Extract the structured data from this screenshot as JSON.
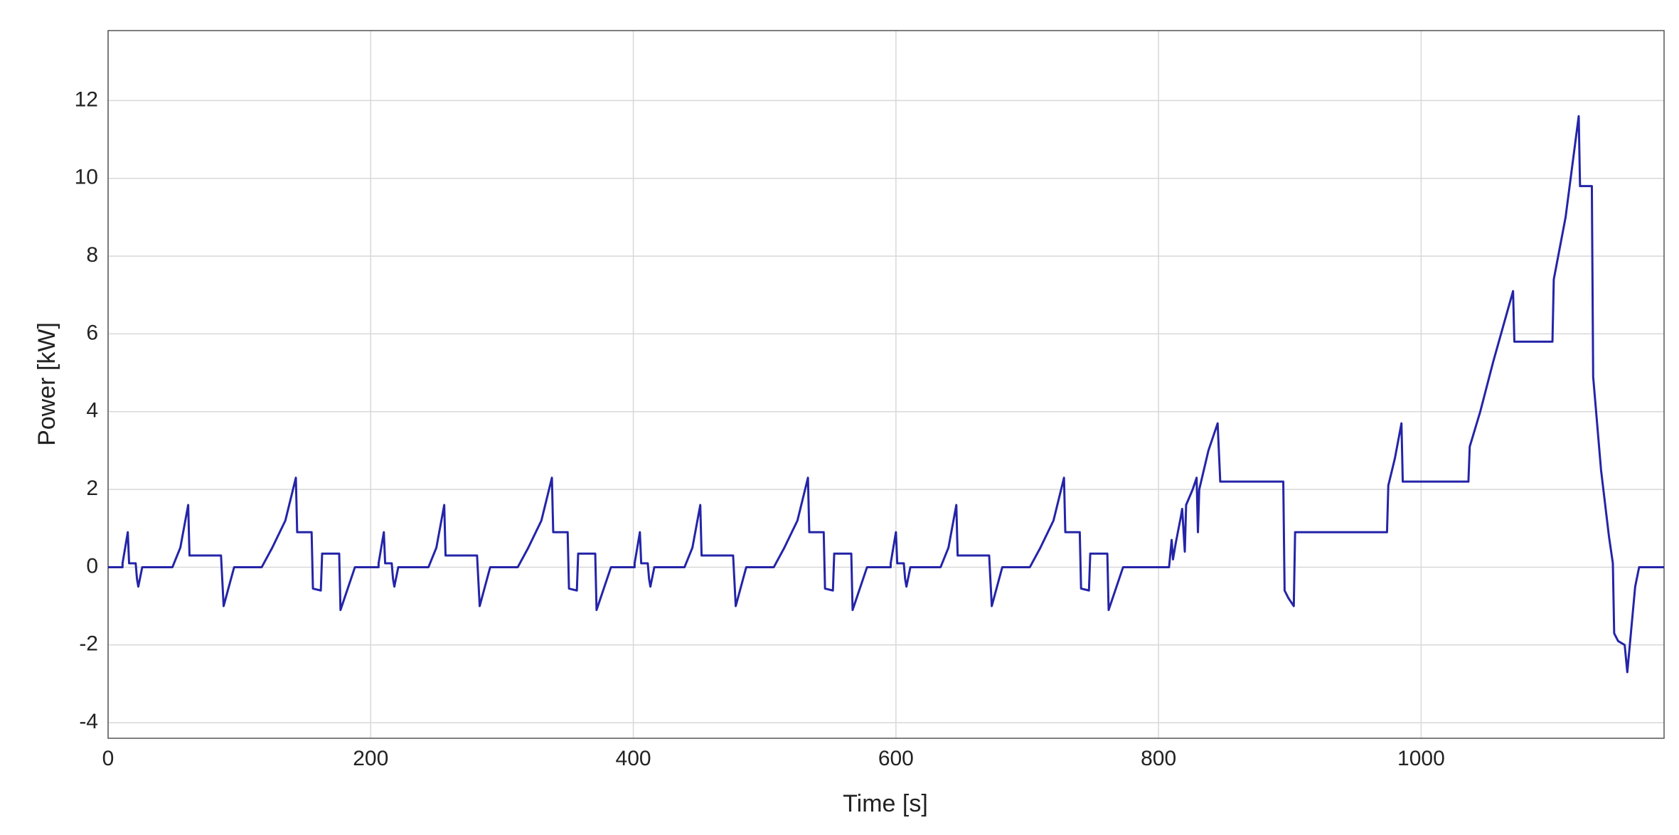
{
  "chart_data": {
    "type": "line",
    "xlabel": "Time [s]",
    "ylabel": "Power [kW]",
    "x": [
      0,
      11,
      11,
      15,
      16,
      21,
      22,
      23,
      26,
      49,
      55,
      61,
      62,
      86,
      88,
      96,
      117,
      125,
      135,
      143,
      144,
      155,
      156,
      162,
      163,
      176,
      177,
      188,
      195,
      206,
      206,
      210,
      211,
      216,
      217,
      218,
      221,
      244,
      250,
      256,
      257,
      281,
      283,
      291,
      312,
      320,
      330,
      338,
      339,
      350,
      351,
      357,
      358,
      371,
      372,
      383,
      390,
      401,
      401,
      405,
      406,
      411,
      412,
      413,
      416,
      439,
      445,
      451,
      452,
      476,
      478,
      486,
      507,
      515,
      525,
      533,
      534,
      545,
      546,
      552,
      553,
      566,
      567,
      578,
      585,
      596,
      596,
      600,
      601,
      606,
      607,
      608,
      611,
      634,
      640,
      646,
      647,
      671,
      673,
      681,
      702,
      710,
      720,
      728,
      729,
      740,
      741,
      747,
      748,
      761,
      762,
      773,
      808,
      810,
      811,
      813,
      817,
      818,
      820,
      821,
      826,
      829,
      830,
      831,
      838,
      845,
      847,
      895,
      896,
      899,
      903,
      904,
      974,
      975,
      980,
      985,
      986,
      1036,
      1037,
      1045,
      1055,
      1065,
      1070,
      1071,
      1100,
      1101,
      1110,
      1120,
      1121,
      1130,
      1131,
      1137,
      1143,
      1146,
      1147,
      1150,
      1155,
      1157,
      1163,
      1166,
      1185
    ],
    "values": [
      0,
      0,
      0.1,
      0.9,
      0.1,
      0.1,
      -0.3,
      -0.5,
      0,
      0,
      0.5,
      1.6,
      0.3,
      0.3,
      -1.0,
      0,
      0,
      0.5,
      1.2,
      2.3,
      0.9,
      0.9,
      -0.55,
      -0.6,
      0.35,
      0.35,
      -1.1,
      0,
      0,
      0,
      0.1,
      0.9,
      0.1,
      0.1,
      -0.3,
      -0.5,
      0,
      0,
      0.5,
      1.6,
      0.3,
      0.3,
      -1.0,
      0,
      0,
      0.5,
      1.2,
      2.3,
      0.9,
      0.9,
      -0.55,
      -0.6,
      0.35,
      0.35,
      -1.1,
      0,
      0,
      0,
      0.1,
      0.9,
      0.1,
      0.1,
      -0.3,
      -0.5,
      0,
      0,
      0.5,
      1.6,
      0.3,
      0.3,
      -1.0,
      0,
      0,
      0.5,
      1.2,
      2.3,
      0.9,
      0.9,
      -0.55,
      -0.6,
      0.35,
      0.35,
      -1.1,
      0,
      0,
      0,
      0.1,
      0.9,
      0.1,
      0.1,
      -0.3,
      -0.5,
      0,
      0,
      0.5,
      1.6,
      0.3,
      0.3,
      -1.0,
      0,
      0,
      0.5,
      1.2,
      2.3,
      0.9,
      0.9,
      -0.55,
      -0.6,
      0.35,
      0.35,
      -1.1,
      0,
      0,
      0.7,
      0.2,
      0.6,
      1.3,
      1.5,
      0.4,
      1.6,
      2.0,
      2.3,
      0.9,
      2.0,
      3.0,
      3.7,
      2.2,
      2.2,
      -0.6,
      -0.8,
      -1.0,
      0.9,
      0.9,
      2.1,
      2.8,
      3.7,
      2.2,
      2.2,
      3.1,
      4.0,
      5.3,
      6.5,
      7.1,
      5.8,
      5.8,
      7.4,
      9.0,
      11.6,
      9.8,
      9.8,
      4.9,
      2.5,
      0.8,
      0.1,
      -1.7,
      -1.9,
      -2.0,
      -2.7,
      -0.5,
      0,
      0
    ],
    "color": "#2424a8",
    "xlim": [
      0,
      1185
    ],
    "ylim": [
      -4.4,
      13.8
    ],
    "xticks": [
      0,
      200,
      400,
      600,
      800,
      1000
    ],
    "yticks": [
      -4,
      -2,
      0,
      2,
      4,
      6,
      8,
      10,
      12
    ],
    "grid": true
  }
}
